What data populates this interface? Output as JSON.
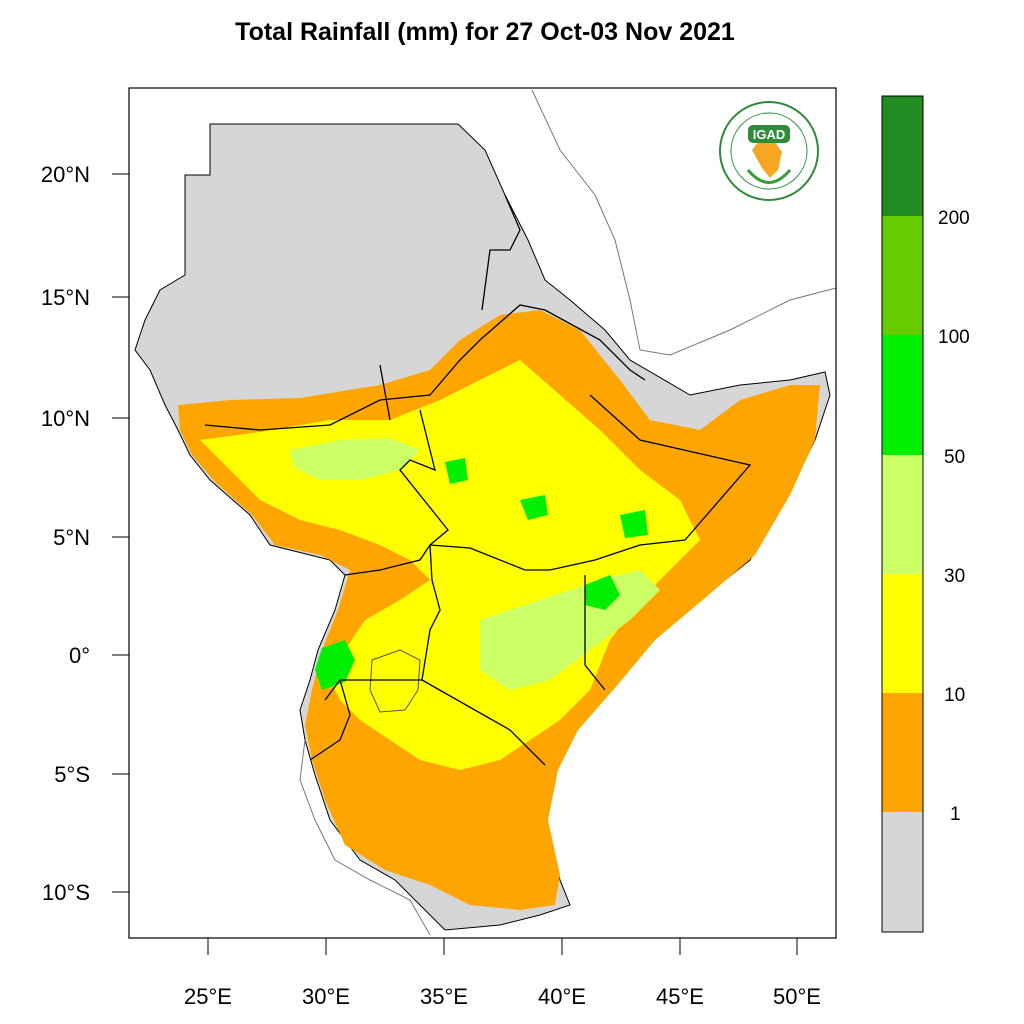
{
  "title": "Total Rainfall (mm) for 27 Oct-03 Nov 2021",
  "logo": {
    "text": "IGAD",
    "ring_text": "INTERGOVERNMENTAL AUTHORITY ON DEVELOPMENT"
  },
  "axes": {
    "lon_ticks": [
      "25°E",
      "30°E",
      "35°E",
      "40°E",
      "45°E",
      "50°E"
    ],
    "lat_ticks": [
      "20°N",
      "15°N",
      "10°N",
      "5°N",
      "0°",
      "5°S",
      "10°S"
    ],
    "lon_range": [
      21.7,
      51.6
    ],
    "lat_range": [
      -11.9,
      23.5
    ]
  },
  "colorbar": {
    "labels": [
      "1",
      "10",
      "30",
      "50",
      "100",
      "200"
    ],
    "classes": [
      {
        "range": "<1",
        "color": "#d6d6d6"
      },
      {
        "range": "1-10",
        "color": "#ffa500"
      },
      {
        "range": "10-30",
        "color": "#ffff00"
      },
      {
        "range": "30-50",
        "color": "#ccff66"
      },
      {
        "range": "50-100",
        "color": "#00ee00"
      },
      {
        "range": "100-200",
        "color": "#66cc00"
      },
      {
        "range": ">200",
        "color": "#228b22"
      }
    ]
  }
}
